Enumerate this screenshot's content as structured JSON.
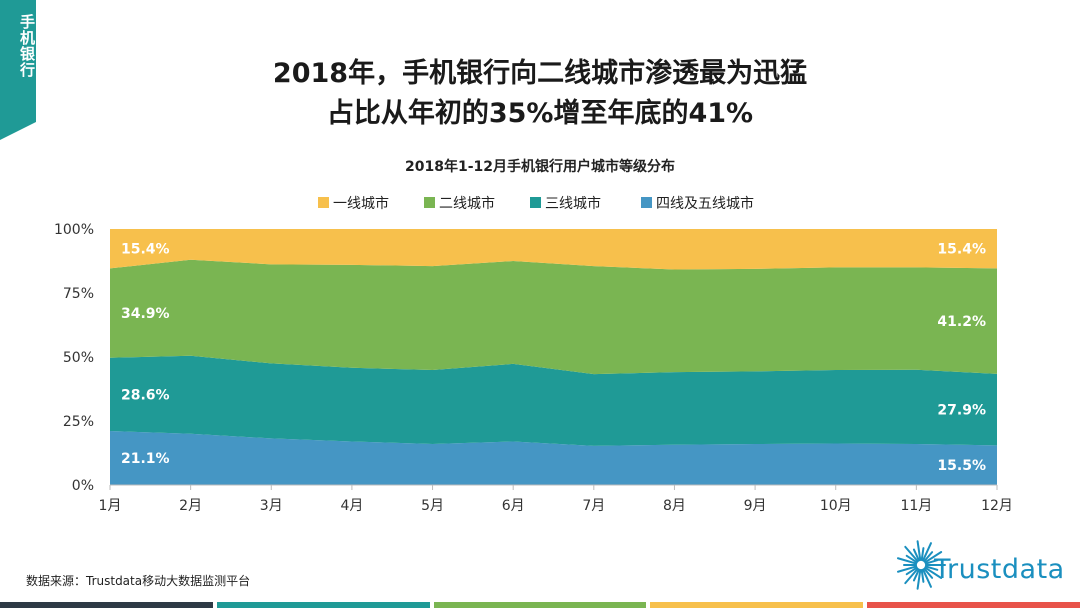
{
  "side_tab": {
    "label": "手机银行"
  },
  "headline": {
    "line1": "2018年，手机银行向二线城市渗透最为迅猛",
    "line2": "占比从年初的35%增至年底的41%"
  },
  "chart_data": {
    "type": "area",
    "stacked": true,
    "title": "2018年1-12月手机银行用户城市等级分布",
    "categories": [
      "1月",
      "2月",
      "3月",
      "4月",
      "5月",
      "6月",
      "7月",
      "8月",
      "9月",
      "10月",
      "11月",
      "12月"
    ],
    "y_ticks": [
      "0%",
      "25%",
      "50%",
      "75%",
      "100%"
    ],
    "ylim": [
      0,
      100
    ],
    "legend_position": "top",
    "series": [
      {
        "name": "四线及五线城市",
        "color": "#4596c4",
        "values": [
          21.1,
          20.0,
          18.2,
          17.0,
          16.0,
          17.0,
          15.3,
          15.7,
          16.0,
          16.2,
          16.0,
          15.5
        ]
      },
      {
        "name": "三线城市",
        "color": "#1f9a96",
        "values": [
          28.6,
          30.5,
          29.3,
          28.8,
          28.9,
          30.3,
          28.0,
          28.4,
          28.4,
          28.7,
          29.0,
          27.9
        ]
      },
      {
        "name": "二线城市",
        "color": "#7ab552",
        "values": [
          34.9,
          37.5,
          38.7,
          40.2,
          40.6,
          40.2,
          42.2,
          40.1,
          40.0,
          40.1,
          40.0,
          41.2
        ]
      },
      {
        "name": "一线城市",
        "color": "#f7c04c",
        "values": [
          15.4,
          12.0,
          13.8,
          14.0,
          14.5,
          12.5,
          14.5,
          15.8,
          15.6,
          15.0,
          15.0,
          15.4
        ]
      }
    ],
    "legend_order": [
      "一线城市",
      "二线城市",
      "三线城市",
      "四线及五线城市"
    ],
    "data_labels": [
      {
        "series": "一线城市",
        "index": 0,
        "text": "15.4%"
      },
      {
        "series": "二线城市",
        "index": 0,
        "text": "34.9%"
      },
      {
        "series": "三线城市",
        "index": 0,
        "text": "28.6%"
      },
      {
        "series": "四线及五线城市",
        "index": 0,
        "text": "21.1%"
      },
      {
        "series": "一线城市",
        "index": 11,
        "text": "15.4%"
      },
      {
        "series": "二线城市",
        "index": 11,
        "text": "41.2%"
      },
      {
        "series": "三线城市",
        "index": 11,
        "text": "27.9%"
      },
      {
        "series": "四线及五线城市",
        "index": 11,
        "text": "15.5%"
      }
    ]
  },
  "footer": {
    "source": "数据来源：Trustdata移动大数据监测平台",
    "logo_text": "Trustdata",
    "bar_colors": [
      "#2e3a45",
      "#1f9a96",
      "#7ab552",
      "#f7c04c",
      "#e8534a"
    ]
  }
}
